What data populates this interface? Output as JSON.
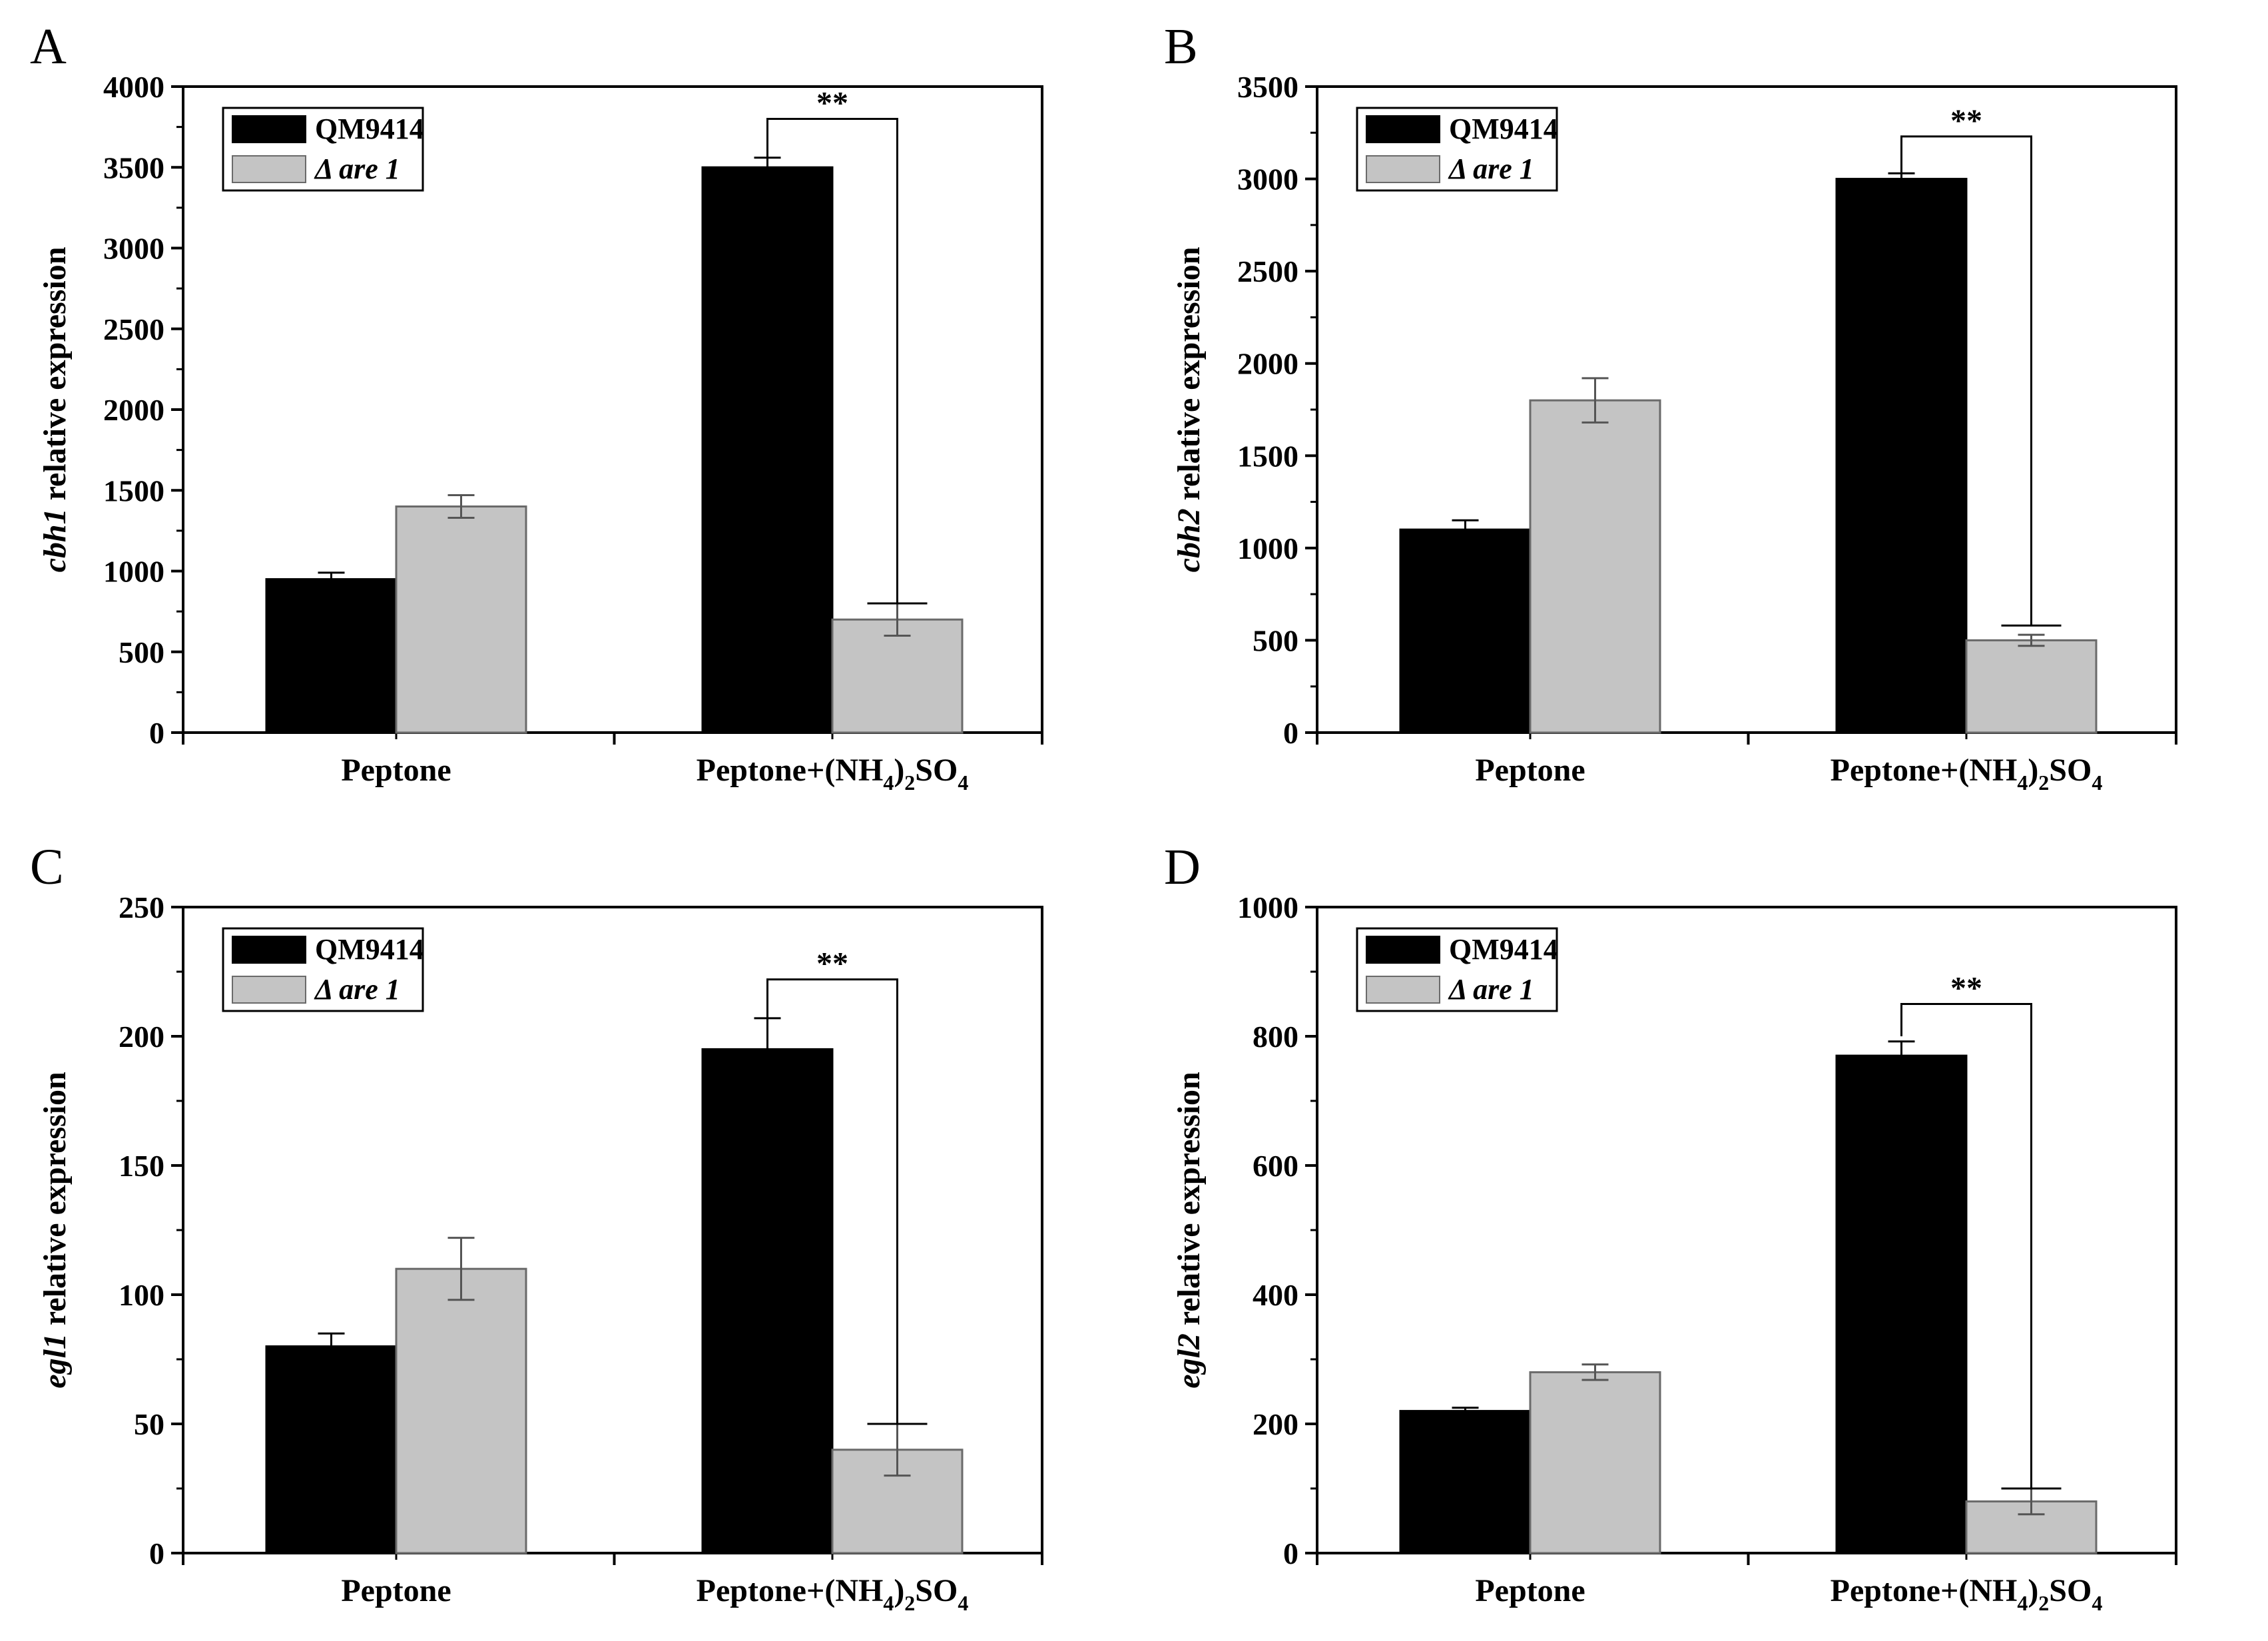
{
  "chart_data": [
    {
      "panel": "A",
      "type": "bar",
      "ylabel_gene": "cbh1",
      "ylabel_suffix": " relative expression",
      "ylim": [
        0,
        4000
      ],
      "yticks": [
        0,
        500,
        1000,
        1500,
        2000,
        2500,
        3000,
        3500,
        4000
      ],
      "categories": [
        {
          "base": "Peptone",
          "sub": []
        },
        {
          "base": "Peptone+(NH",
          "sub": [
            [
              "4",
              ")"
            ],
            [
              "2",
              "SO"
            ],
            [
              "4",
              ""
            ]
          ]
        }
      ],
      "series": [
        {
          "name": "QM9414",
          "italic": false,
          "color": "#000000",
          "values": [
            950,
            3500
          ],
          "errors": [
            40,
            60
          ]
        },
        {
          "name": "Δ are 1",
          "italic": true,
          "color": "#c4c4c4",
          "values": [
            1400,
            700
          ],
          "errors": [
            70,
            100
          ]
        }
      ],
      "significance": {
        "label": "**",
        "category_index": 1,
        "level": 3800,
        "left_bottom": 3560,
        "right_bottom": 800
      }
    },
    {
      "panel": "B",
      "type": "bar",
      "ylabel_gene": "cbh2",
      "ylabel_suffix": " relative expression",
      "ylim": [
        0,
        3500
      ],
      "yticks": [
        0,
        500,
        1000,
        1500,
        2000,
        2500,
        3000,
        3500
      ],
      "categories": [
        {
          "base": "Peptone",
          "sub": []
        },
        {
          "base": "Peptone+(NH",
          "sub": [
            [
              "4",
              ")"
            ],
            [
              "2",
              "SO"
            ],
            [
              "4",
              ""
            ]
          ]
        }
      ],
      "series": [
        {
          "name": "QM9414",
          "italic": false,
          "color": "#000000",
          "values": [
            1100,
            3000
          ],
          "errors": [
            50,
            30
          ]
        },
        {
          "name": "Δ are 1",
          "italic": true,
          "color": "#c4c4c4",
          "values": [
            1800,
            500
          ],
          "errors": [
            120,
            30
          ]
        }
      ],
      "significance": {
        "label": "**",
        "category_index": 1,
        "level": 3230,
        "left_bottom": 3030,
        "right_bottom": 580
      }
    },
    {
      "panel": "C",
      "type": "bar",
      "ylabel_gene": "egl1",
      "ylabel_suffix": " relative expression",
      "ylim": [
        0,
        250
      ],
      "yticks": [
        0,
        50,
        100,
        150,
        200,
        250
      ],
      "categories": [
        {
          "base": "Peptone",
          "sub": []
        },
        {
          "base": "Peptone+(NH",
          "sub": [
            [
              "4",
              ")"
            ],
            [
              "2",
              "SO"
            ],
            [
              "4",
              ""
            ]
          ]
        }
      ],
      "series": [
        {
          "name": "QM9414",
          "italic": false,
          "color": "#000000",
          "values": [
            80,
            195
          ],
          "errors": [
            5,
            12
          ]
        },
        {
          "name": "Δ are 1",
          "italic": true,
          "color": "#c4c4c4",
          "values": [
            110,
            40
          ],
          "errors": [
            12,
            10
          ]
        }
      ],
      "significance": {
        "label": "**",
        "category_index": 1,
        "level": 222,
        "left_bottom": 207,
        "right_bottom": 50
      }
    },
    {
      "panel": "D",
      "type": "bar",
      "ylabel_gene": "egl2",
      "ylabel_suffix": " relative expression",
      "ylim": [
        0,
        1000
      ],
      "yticks": [
        0,
        200,
        400,
        600,
        800,
        1000
      ],
      "categories": [
        {
          "base": "Peptone",
          "sub": []
        },
        {
          "base": "Peptone+(NH",
          "sub": [
            [
              "4",
              ")"
            ],
            [
              "2",
              "SO"
            ],
            [
              "4",
              ""
            ]
          ]
        }
      ],
      "series": [
        {
          "name": "QM9414",
          "italic": false,
          "color": "#000000",
          "values": [
            220,
            770
          ],
          "errors": [
            5,
            22
          ]
        },
        {
          "name": "Δ are 1",
          "italic": true,
          "color": "#c4c4c4",
          "values": [
            280,
            80
          ],
          "errors": [
            12,
            20
          ]
        }
      ],
      "significance": {
        "label": "**",
        "category_index": 1,
        "level": 850,
        "left_bottom": 800,
        "right_bottom": 100
      }
    }
  ]
}
